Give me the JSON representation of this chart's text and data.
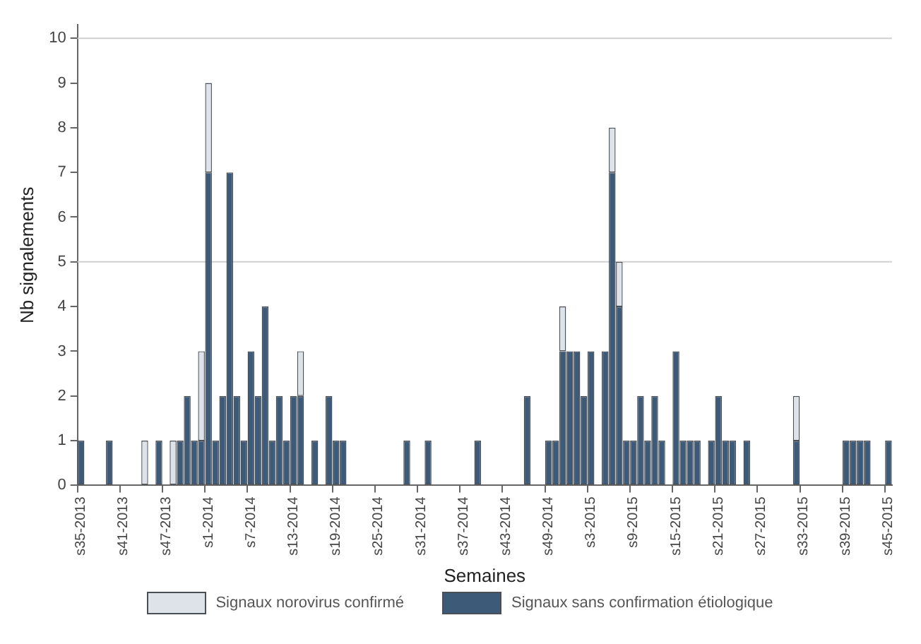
{
  "chart_data": {
    "type": "bar",
    "stacked": true,
    "xlabel": "Semaines",
    "ylabel": "Nb signalements",
    "categories": [
      "s35-2013",
      null,
      null,
      null,
      null,
      null,
      "s41-2013",
      null,
      null,
      null,
      null,
      null,
      "s47-2013",
      null,
      null,
      null,
      null,
      null,
      "s1-2014",
      null,
      null,
      null,
      null,
      null,
      "s7-2014",
      null,
      null,
      null,
      null,
      null,
      "s13-2014",
      null,
      null,
      null,
      null,
      null,
      "s19-2014",
      null,
      null,
      null,
      null,
      null,
      "s25-2014",
      null,
      null,
      null,
      null,
      null,
      "s31-2014",
      null,
      null,
      null,
      null,
      null,
      "s37-2014",
      null,
      null,
      null,
      null,
      null,
      "s43-2014",
      null,
      null,
      null,
      null,
      null,
      "s49-2014",
      null,
      null,
      null,
      null,
      null,
      "s3-2015",
      null,
      null,
      null,
      null,
      null,
      "s9-2015",
      null,
      null,
      null,
      null,
      null,
      "s15-2015",
      null,
      null,
      null,
      null,
      null,
      "s21-2015",
      null,
      null,
      null,
      null,
      null,
      "s27-2015",
      null,
      null,
      null,
      null,
      null,
      "s33-2015",
      null,
      null,
      null,
      null,
      null,
      "s39-2015",
      null,
      null,
      null,
      null,
      null,
      "s45-2015"
    ],
    "series": [
      {
        "name": "Signaux sans confirmation étiologique",
        "color": "#3d5a78",
        "values": [
          1,
          0,
          0,
          0,
          1,
          0,
          0,
          0,
          0,
          0,
          0,
          1,
          0,
          0,
          1,
          2,
          1,
          1,
          7,
          1,
          2,
          7,
          2,
          1,
          3,
          2,
          4,
          1,
          2,
          1,
          2,
          2,
          0,
          1,
          0,
          2,
          1,
          1,
          0,
          0,
          0,
          0,
          0,
          0,
          0,
          0,
          1,
          0,
          0,
          1,
          0,
          0,
          0,
          0,
          0,
          0,
          1,
          0,
          0,
          0,
          0,
          0,
          0,
          2,
          0,
          0,
          1,
          1,
          3,
          3,
          3,
          2,
          3,
          0,
          3,
          7,
          4,
          1,
          1,
          2,
          1,
          2,
          1,
          0,
          3,
          1,
          1,
          1,
          0,
          1,
          2,
          1,
          1,
          0,
          1,
          0,
          0,
          0,
          0,
          0,
          0,
          1,
          0,
          0,
          0,
          0,
          0,
          0,
          1,
          1,
          1,
          1,
          0,
          0,
          1
        ]
      },
      {
        "name": "Signaux norovirus confirmé",
        "color": "#dde3e8",
        "values": [
          0,
          0,
          0,
          0,
          0,
          0,
          0,
          0,
          0,
          1,
          0,
          0,
          0,
          1,
          0,
          0,
          0,
          2,
          2,
          0,
          0,
          0,
          0,
          0,
          0,
          0,
          0,
          0,
          0,
          0,
          0,
          1,
          0,
          0,
          0,
          0,
          0,
          0,
          0,
          0,
          0,
          0,
          0,
          0,
          0,
          0,
          0,
          0,
          0,
          0,
          0,
          0,
          0,
          0,
          0,
          0,
          0,
          0,
          0,
          0,
          0,
          0,
          0,
          0,
          0,
          0,
          0,
          0,
          1,
          0,
          0,
          0,
          0,
          0,
          0,
          1,
          1,
          0,
          0,
          0,
          0,
          0,
          0,
          0,
          0,
          0,
          0,
          0,
          0,
          0,
          0,
          0,
          0,
          0,
          0,
          0,
          0,
          0,
          0,
          0,
          0,
          1,
          0,
          0,
          0,
          0,
          0,
          0,
          0,
          0,
          0,
          0,
          0,
          0,
          0
        ]
      }
    ],
    "ylim": [
      0,
      10.3
    ],
    "yticks": [
      0,
      1,
      2,
      3,
      4,
      5,
      6,
      7,
      8,
      9,
      10
    ],
    "grid": false,
    "legend": "bottom",
    "ref_lines": [
      {
        "axis": "y",
        "value": 5,
        "color": "#d0d0d0"
      },
      {
        "axis": "y",
        "value": 10,
        "color": "#d0d0d0"
      }
    ]
  }
}
